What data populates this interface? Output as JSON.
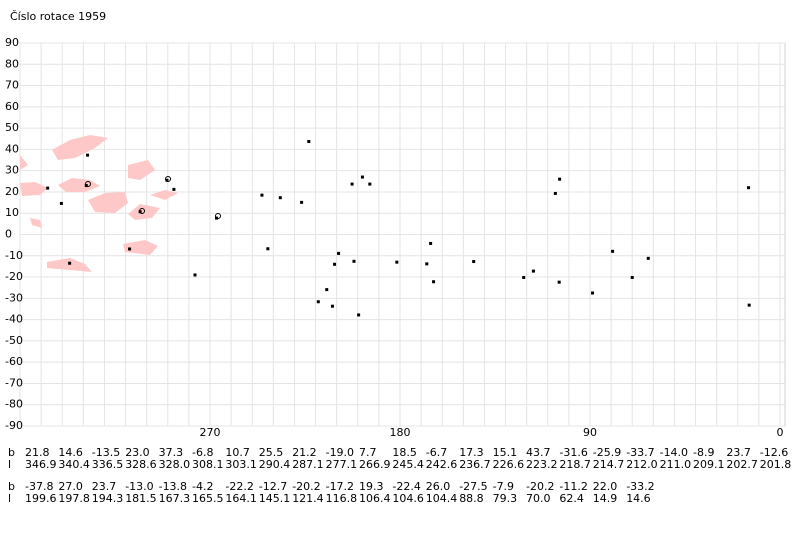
{
  "chart_data": {
    "type": "scatter",
    "title": "Číslo rotace  1959",
    "x": [
      346.9,
      340.4,
      336.5,
      328.6,
      328.0,
      308.1,
      303.1,
      290.4,
      287.1,
      277.1,
      266.9,
      245.4,
      242.6,
      236.7,
      226.6,
      223.2,
      218.7,
      214.7,
      212.0,
      211.0,
      209.1,
      202.7,
      201.8,
      199.6,
      197.8,
      194.3,
      181.5,
      167.3,
      165.5,
      164.1,
      145.1,
      121.4,
      116.8,
      106.4,
      104.6,
      104.4,
      88.8,
      79.3,
      70.0,
      62.4,
      14.9,
      14.6
    ],
    "x_labels": [
      "346.9",
      "340.4",
      "336.5",
      "328.6",
      "328.0",
      "308.1",
      "303.1",
      "290.4",
      "287.1",
      "277.1",
      "266.9",
      "245.4",
      "242.6",
      "236.7",
      "226.6",
      "223.2",
      "218.7",
      "214.7",
      "212.0",
      "211.0",
      "209.1",
      "202.7",
      "201.8",
      "199.6",
      "197.8",
      "194.3",
      "181.5",
      "167.3",
      "165.5",
      "164.1",
      "145.1",
      "121.4",
      "116.8",
      "106.4",
      "104.6",
      "104.4",
      "88.8",
      "79.3",
      "70.0",
      "62.4",
      "14.9",
      "14.6"
    ],
    "values": [
      21.8,
      14.6,
      -13.5,
      23.0,
      37.3,
      -6.8,
      10.7,
      25.5,
      21.2,
      -19.0,
      7.7,
      18.5,
      -6.7,
      17.3,
      15.1,
      43.7,
      -31.6,
      -25.9,
      -33.7,
      -14.0,
      -8.9,
      23.7,
      -12.6,
      -37.8,
      27.0,
      23.7,
      -13.0,
      -13.8,
      -4.2,
      -22.2,
      -12.7,
      -20.2,
      -17.2,
      19.3,
      -22.4,
      26.0,
      -27.5,
      -7.9,
      -20.2,
      -11.2,
      22.0,
      -33.2
    ],
    "value_labels": [
      "21.8",
      "14.6",
      "-13.5",
      "23.0",
      "37.3",
      "-6.8",
      "10.7",
      "25.5",
      "21.2",
      "-19.0",
      "7.7",
      "18.5",
      "-6.7",
      "17.3",
      "15.1",
      "43.7",
      "-31.6",
      "-25.9",
      "-33.7",
      "-14.0",
      "-8.9",
      "23.7",
      "-12.6",
      "-37.8",
      "27.0",
      "23.7",
      "-13.0",
      "-13.8",
      "-4.2",
      "-22.2",
      "-12.7",
      "-20.2",
      "-17.2",
      "19.3",
      "-22.4",
      "26.0",
      "-27.5",
      "-7.9",
      "-20.2",
      "-11.2",
      "22.0",
      "-33.2"
    ],
    "b_label": "b",
    "l_label": "l",
    "xlim": [
      360,
      0
    ],
    "xticks": [
      270,
      180,
      90,
      0
    ],
    "ylim": [
      -90,
      90
    ],
    "yticks": [
      90,
      80,
      70,
      60,
      50,
      40,
      30,
      20,
      10,
      0,
      -10,
      -20,
      -30,
      -40,
      -50,
      -60,
      -70,
      -80,
      -90
    ],
    "color": "#000000",
    "grid": true
  }
}
